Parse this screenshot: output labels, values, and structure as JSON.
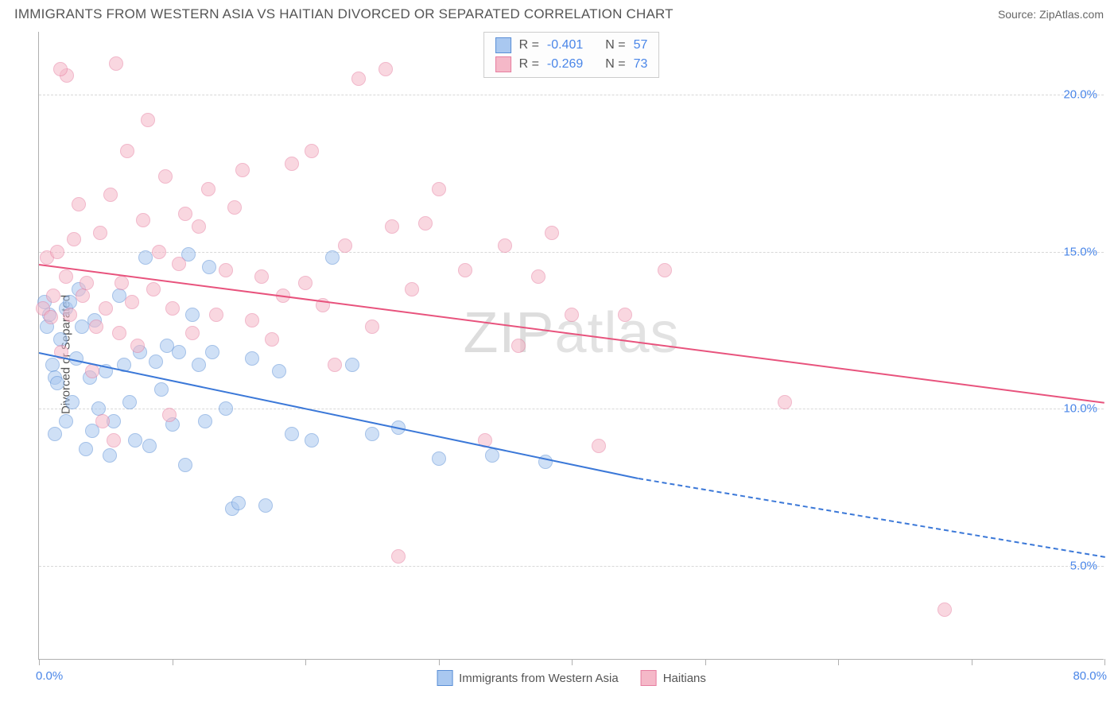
{
  "header": {
    "title": "IMMIGRANTS FROM WESTERN ASIA VS HAITIAN DIVORCED OR SEPARATED CORRELATION CHART",
    "source_prefix": "Source: ",
    "source": "ZipAtlas.com"
  },
  "watermark": {
    "part1": "ZIP",
    "part2": "atlas"
  },
  "chart": {
    "type": "scatter",
    "ylabel": "Divorced or Separated",
    "xlim": [
      0,
      80
    ],
    "ylim": [
      2,
      22
    ],
    "yticks": [
      5.0,
      10.0,
      15.0,
      20.0
    ],
    "ytick_labels": [
      "5.0%",
      "10.0%",
      "15.0%",
      "20.0%"
    ],
    "xticks": [
      0,
      10,
      20,
      30,
      40,
      50,
      60,
      70,
      80
    ],
    "xlabel_min": "0.0%",
    "xlabel_max": "80.0%",
    "background_color": "#ffffff",
    "grid_color": "#d8d8d8",
    "axis_color": "#b0b0b0",
    "marker_radius": 9,
    "marker_opacity": 0.55,
    "series": [
      {
        "name": "Immigrants from Western Asia",
        "color_fill": "#a9c8f0",
        "color_stroke": "#5b8fd6",
        "line_color": "#3b78d8",
        "R": "-0.401",
        "N": "57",
        "trend": {
          "x1": 0,
          "y1": 11.8,
          "x2": 45,
          "y2": 7.8,
          "extend_x": 80,
          "extend_y": 5.3
        },
        "points": [
          [
            0.4,
            13.4
          ],
          [
            0.6,
            12.6
          ],
          [
            0.8,
            13.0
          ],
          [
            1.0,
            11.4
          ],
          [
            1.2,
            9.2
          ],
          [
            1.2,
            11.0
          ],
          [
            1.4,
            10.8
          ],
          [
            1.6,
            12.2
          ],
          [
            2.0,
            13.2
          ],
          [
            2.0,
            9.6
          ],
          [
            2.3,
            13.4
          ],
          [
            2.5,
            10.2
          ],
          [
            2.8,
            11.6
          ],
          [
            3.0,
            13.8
          ],
          [
            3.2,
            12.6
          ],
          [
            3.5,
            8.7
          ],
          [
            3.8,
            11.0
          ],
          [
            4.0,
            9.3
          ],
          [
            4.2,
            12.8
          ],
          [
            4.5,
            10.0
          ],
          [
            5.0,
            11.2
          ],
          [
            5.3,
            8.5
          ],
          [
            5.6,
            9.6
          ],
          [
            6.0,
            13.6
          ],
          [
            6.4,
            11.4
          ],
          [
            6.8,
            10.2
          ],
          [
            7.2,
            9.0
          ],
          [
            7.6,
            11.8
          ],
          [
            8.0,
            14.8
          ],
          [
            8.3,
            8.8
          ],
          [
            8.8,
            11.5
          ],
          [
            9.2,
            10.6
          ],
          [
            9.6,
            12.0
          ],
          [
            10.0,
            9.5
          ],
          [
            10.5,
            11.8
          ],
          [
            11.0,
            8.2
          ],
          [
            11.5,
            13.0
          ],
          [
            12.0,
            11.4
          ],
          [
            12.5,
            9.6
          ],
          [
            13.0,
            11.8
          ],
          [
            14.0,
            10.0
          ],
          [
            14.5,
            6.8
          ],
          [
            15.0,
            7.0
          ],
          [
            16.0,
            11.6
          ],
          [
            17.0,
            6.9
          ],
          [
            18.0,
            11.2
          ],
          [
            19.0,
            9.2
          ],
          [
            20.5,
            9.0
          ],
          [
            22.0,
            14.8
          ],
          [
            23.5,
            11.4
          ],
          [
            25.0,
            9.2
          ],
          [
            27.0,
            9.4
          ],
          [
            30.0,
            8.4
          ],
          [
            34.0,
            8.5
          ],
          [
            38.0,
            8.3
          ],
          [
            11.2,
            14.9
          ],
          [
            12.8,
            14.5
          ]
        ]
      },
      {
        "name": "Haitians",
        "color_fill": "#f5b8c8",
        "color_stroke": "#e77ea0",
        "line_color": "#e8537d",
        "R": "-0.269",
        "N": "73",
        "trend": {
          "x1": 0,
          "y1": 14.6,
          "x2": 80,
          "y2": 10.2
        },
        "points": [
          [
            0.3,
            13.2
          ],
          [
            0.6,
            14.8
          ],
          [
            0.9,
            12.9
          ],
          [
            1.1,
            13.6
          ],
          [
            1.4,
            15.0
          ],
          [
            1.7,
            11.8
          ],
          [
            2.0,
            14.2
          ],
          [
            2.3,
            13.0
          ],
          [
            2.6,
            15.4
          ],
          [
            3.0,
            16.5
          ],
          [
            3.3,
            13.6
          ],
          [
            3.6,
            14.0
          ],
          [
            4.0,
            11.2
          ],
          [
            4.3,
            12.6
          ],
          [
            4.6,
            15.6
          ],
          [
            5.0,
            13.2
          ],
          [
            5.4,
            16.8
          ],
          [
            5.8,
            21.0
          ],
          [
            6.2,
            14.0
          ],
          [
            6.6,
            18.2
          ],
          [
            7.0,
            13.4
          ],
          [
            7.4,
            12.0
          ],
          [
            7.8,
            16.0
          ],
          [
            8.2,
            19.2
          ],
          [
            8.6,
            13.8
          ],
          [
            9.0,
            15.0
          ],
          [
            9.5,
            17.4
          ],
          [
            10.0,
            13.2
          ],
          [
            10.5,
            14.6
          ],
          [
            11.0,
            16.2
          ],
          [
            11.5,
            12.4
          ],
          [
            12.0,
            15.8
          ],
          [
            12.7,
            17.0
          ],
          [
            13.3,
            13.0
          ],
          [
            14.0,
            14.4
          ],
          [
            14.7,
            16.4
          ],
          [
            15.3,
            17.6
          ],
          [
            16.0,
            12.8
          ],
          [
            16.7,
            14.2
          ],
          [
            17.5,
            12.2
          ],
          [
            18.3,
            13.6
          ],
          [
            19.0,
            17.8
          ],
          [
            20.0,
            14.0
          ],
          [
            20.5,
            18.2
          ],
          [
            21.3,
            13.3
          ],
          [
            22.2,
            11.4
          ],
          [
            23.0,
            15.2
          ],
          [
            24.0,
            20.5
          ],
          [
            25.0,
            12.6
          ],
          [
            26.0,
            20.8
          ],
          [
            26.5,
            15.8
          ],
          [
            27.0,
            5.3
          ],
          [
            28.0,
            13.8
          ],
          [
            29.0,
            15.9
          ],
          [
            30.0,
            17.0
          ],
          [
            32.0,
            14.4
          ],
          [
            33.5,
            9.0
          ],
          [
            35.0,
            15.2
          ],
          [
            36.0,
            12.0
          ],
          [
            37.5,
            14.2
          ],
          [
            38.5,
            15.6
          ],
          [
            40.0,
            13.0
          ],
          [
            42.0,
            8.8
          ],
          [
            44.0,
            13.0
          ],
          [
            47.0,
            14.4
          ],
          [
            56.0,
            10.2
          ],
          [
            68.0,
            3.6
          ],
          [
            2.1,
            20.6
          ],
          [
            1.6,
            20.8
          ],
          [
            4.8,
            9.6
          ],
          [
            5.6,
            9.0
          ],
          [
            9.8,
            9.8
          ],
          [
            6.0,
            12.4
          ]
        ]
      }
    ],
    "legend_top": {
      "r_label": "R =",
      "n_label": "N ="
    }
  }
}
